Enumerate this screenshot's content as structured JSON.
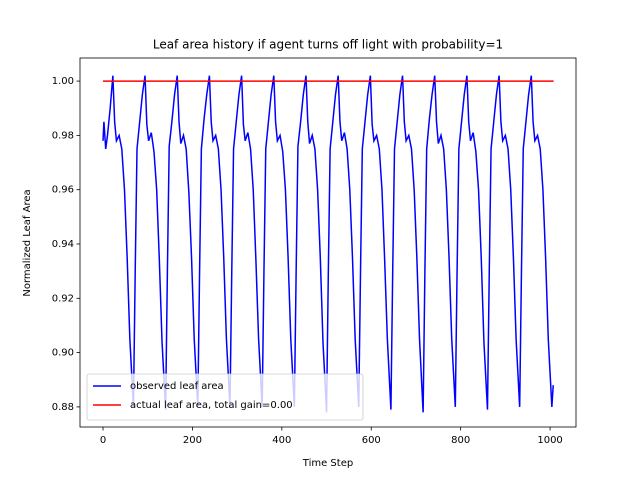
{
  "chart_data": {
    "type": "line",
    "title": "Leaf area history if agent turns off light with probability=1",
    "xlabel": "Time Step",
    "ylabel": "Normalized Leaf Area",
    "xlim": [
      -51.5,
      1058
    ],
    "ylim": [
      0.8726,
      1.0085
    ],
    "xticks": [
      0,
      200,
      400,
      600,
      800,
      1000
    ],
    "yticks": [
      {
        "value": 0.88,
        "label": "0.88"
      },
      {
        "value": 0.9,
        "label": "0.90"
      },
      {
        "value": 0.92,
        "label": "0.92"
      },
      {
        "value": 0.94,
        "label": "0.94"
      },
      {
        "value": 0.96,
        "label": "0.96"
      },
      {
        "value": 0.98,
        "label": "0.98"
      },
      {
        "value": 1.0,
        "label": "1.00"
      }
    ],
    "legend": "lower left",
    "series": [
      {
        "name": "observed leaf area",
        "color": "#0000ff",
        "x": [
          0,
          2,
          6,
          10,
          16,
          22,
          26,
          30,
          36,
          42,
          48,
          54,
          60,
          68,
          72,
          76,
          82,
          88,
          94,
          98,
          102,
          108,
          114,
          120,
          126,
          132,
          140,
          144,
          148,
          154,
          160,
          166,
          170,
          174,
          180,
          186,
          192,
          198,
          204,
          212,
          216,
          220,
          226,
          232,
          238,
          242,
          246,
          252,
          258,
          264,
          270,
          276,
          284,
          288,
          292,
          298,
          304,
          310,
          314,
          318,
          324,
          330,
          336,
          342,
          348,
          356,
          360,
          364,
          370,
          376,
          382,
          386,
          390,
          396,
          402,
          408,
          414,
          420,
          428,
          432,
          436,
          442,
          448,
          454,
          458,
          462,
          468,
          474,
          480,
          486,
          492,
          500,
          504,
          508,
          514,
          520,
          526,
          530,
          534,
          540,
          546,
          552,
          558,
          564,
          572,
          576,
          580,
          586,
          592,
          598,
          602,
          606,
          612,
          618,
          624,
          630,
          636,
          644,
          648,
          652,
          658,
          664,
          670,
          674,
          678,
          684,
          690,
          696,
          702,
          708,
          716,
          720,
          724,
          730,
          736,
          742,
          746,
          750,
          756,
          762,
          768,
          774,
          780,
          788,
          792,
          796,
          802,
          808,
          814,
          818,
          822,
          828,
          834,
          840,
          846,
          852,
          860,
          864,
          868,
          874,
          880,
          886,
          890,
          894,
          900,
          906,
          912,
          918,
          924,
          932,
          936,
          940,
          946,
          952,
          958,
          962,
          966,
          972,
          978,
          984,
          990,
          996,
          1004,
          1007
        ],
        "values": [
          0.978,
          0.985,
          0.975,
          0.98,
          0.99,
          1.002,
          0.985,
          0.978,
          0.98,
          0.975,
          0.96,
          0.935,
          0.905,
          0.88,
          0.93,
          0.975,
          0.985,
          0.995,
          1.002,
          0.984,
          0.978,
          0.981,
          0.974,
          0.96,
          0.934,
          0.904,
          0.879,
          0.93,
          0.976,
          0.985,
          0.995,
          1.002,
          0.985,
          0.977,
          0.98,
          0.975,
          0.959,
          0.935,
          0.905,
          0.88,
          0.93,
          0.975,
          0.986,
          0.995,
          1.002,
          0.985,
          0.978,
          0.98,
          0.975,
          0.96,
          0.935,
          0.905,
          0.88,
          0.93,
          0.975,
          0.985,
          0.995,
          1.002,
          0.984,
          0.978,
          0.981,
          0.975,
          0.96,
          0.934,
          0.905,
          0.88,
          0.93,
          0.975,
          0.985,
          0.995,
          1.002,
          0.985,
          0.978,
          0.98,
          0.974,
          0.96,
          0.935,
          0.905,
          0.88,
          0.93,
          0.976,
          0.985,
          0.995,
          1.002,
          0.985,
          0.977,
          0.98,
          0.975,
          0.96,
          0.935,
          0.904,
          0.878,
          0.93,
          0.975,
          0.985,
          0.995,
          1.002,
          0.985,
          0.978,
          0.981,
          0.975,
          0.96,
          0.935,
          0.905,
          0.88,
          0.93,
          0.975,
          0.985,
          0.995,
          1.002,
          0.984,
          0.978,
          0.98,
          0.975,
          0.96,
          0.934,
          0.905,
          0.879,
          0.93,
          0.975,
          0.985,
          0.995,
          1.002,
          0.985,
          0.978,
          0.98,
          0.975,
          0.96,
          0.935,
          0.905,
          0.878,
          0.93,
          0.975,
          0.986,
          0.995,
          1.002,
          0.985,
          0.977,
          0.98,
          0.975,
          0.96,
          0.935,
          0.905,
          0.88,
          0.93,
          0.975,
          0.985,
          0.995,
          1.002,
          0.985,
          0.978,
          0.981,
          0.974,
          0.96,
          0.935,
          0.904,
          0.879,
          0.93,
          0.975,
          0.985,
          0.995,
          1.002,
          0.985,
          0.978,
          0.98,
          0.975,
          0.96,
          0.935,
          0.905,
          0.88,
          0.93,
          0.975,
          0.985,
          0.995,
          1.002,
          0.985,
          0.978,
          0.98,
          0.975,
          0.96,
          0.935,
          0.905,
          0.88,
          0.888
        ]
      },
      {
        "name": "actual leaf area, total gain=0.00",
        "color": "#ff0000",
        "x": [
          0,
          1008
        ],
        "values": [
          1.0,
          1.0
        ]
      }
    ]
  }
}
